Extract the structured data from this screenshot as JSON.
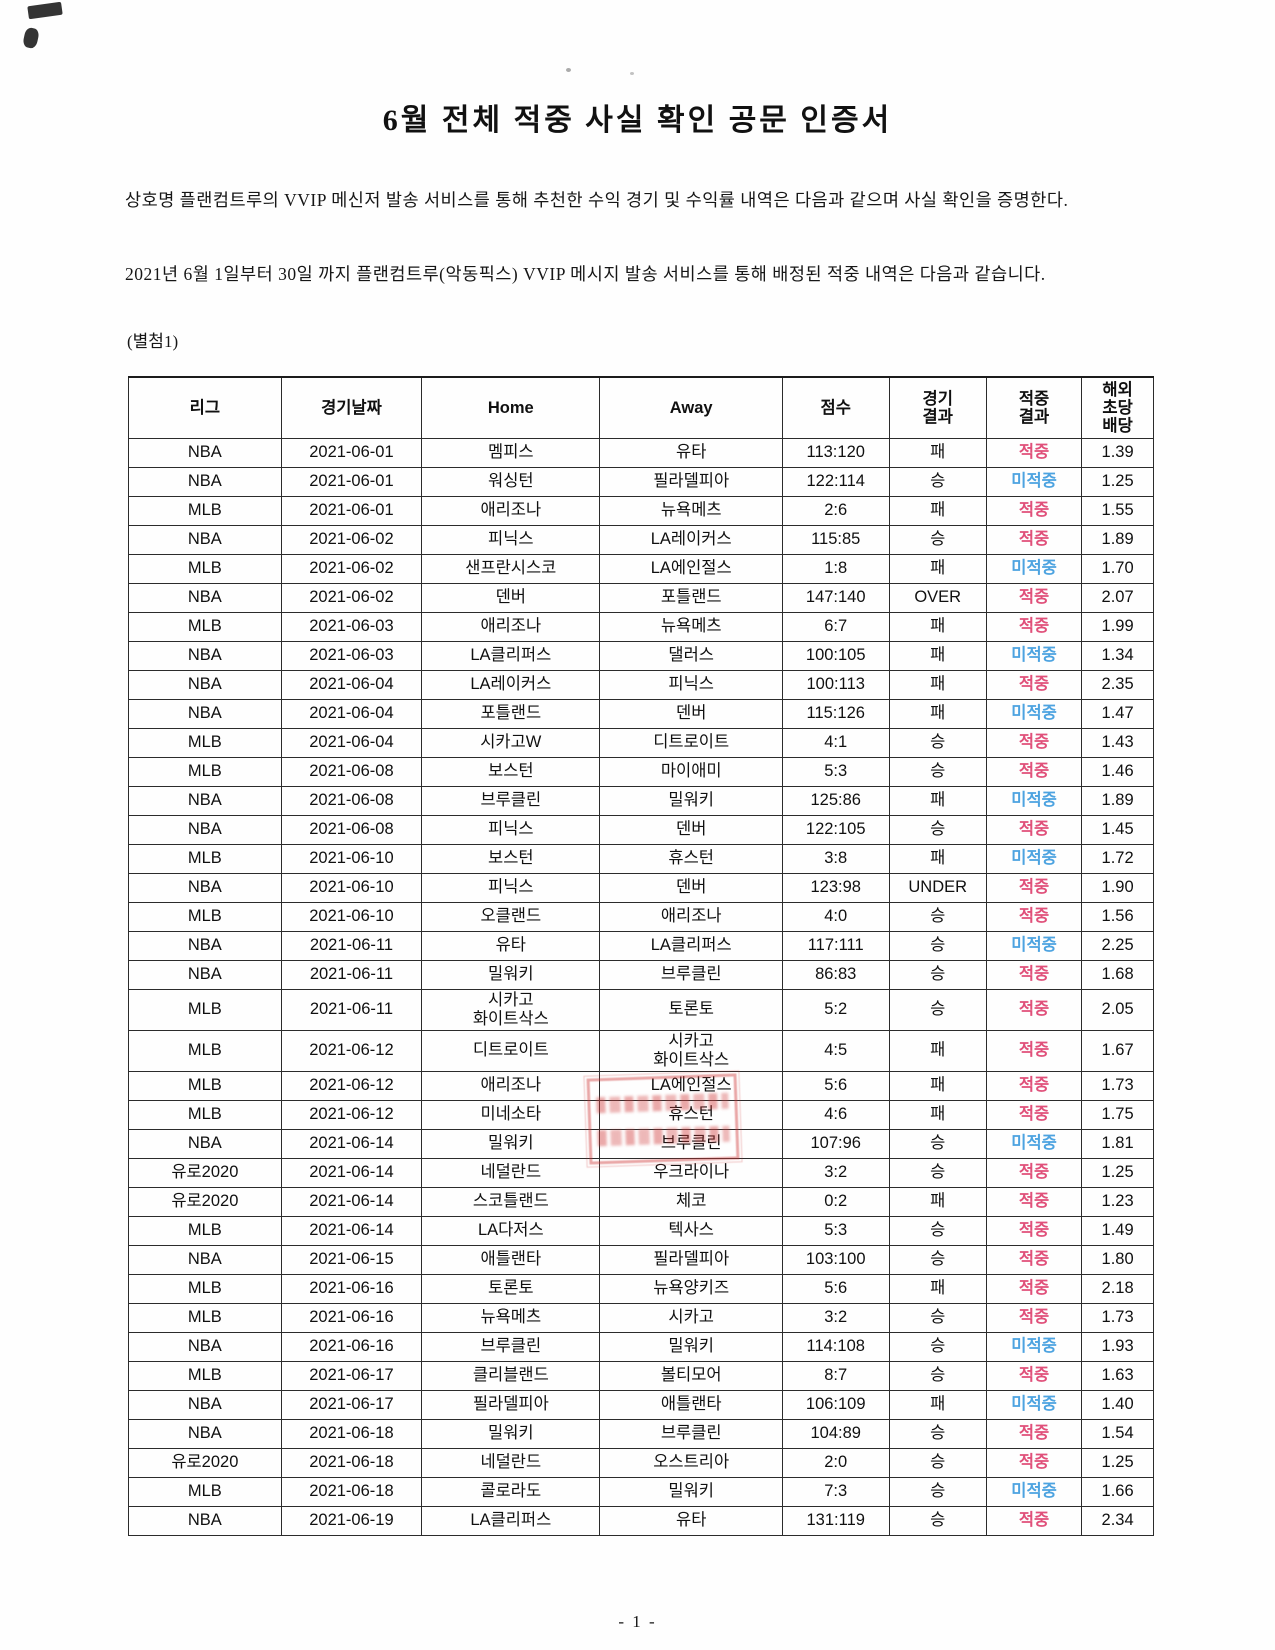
{
  "document": {
    "title": "6월 전체 적중 사실 확인 공문 인증서",
    "paragraph1": "상호명 플랜컴트루의 VVIP 메신저 발송 서비스를 통해 추천한 수익 경기 및 수익률 내역은 다음과 같으며 사실 확인을 증명한다.",
    "paragraph2": "2021년 6월 1일부터 30일 까지 플랜컴트루(악동픽스) VVIP 메시지 발송 서비스를 통해 배정된 적중 내역은 다음과 같습니다.",
    "attachment_label": "(별첨1)",
    "page_number": "- 1 -"
  },
  "colors": {
    "hit": "#e0507a",
    "miss": "#4da3e0"
  },
  "icons": {
    "red_stamp": "red-seal-stamp-illegible"
  },
  "table": {
    "hit_label": "적중",
    "miss_label": "미적중",
    "headers": [
      "리그",
      "경기날짜",
      "Home",
      "Away",
      "점수",
      "경기\n결과",
      "적중\n결과",
      "해외\n초당\n배당"
    ],
    "rows": [
      {
        "league": "NBA",
        "date": "2021-06-01",
        "home": "멤피스",
        "away": "유타",
        "score": "113:120",
        "result": "패",
        "hit": "적중",
        "odds": "1.39"
      },
      {
        "league": "NBA",
        "date": "2021-06-01",
        "home": "워싱턴",
        "away": "필라델피아",
        "score": "122:114",
        "result": "승",
        "hit": "미적중",
        "odds": "1.25"
      },
      {
        "league": "MLB",
        "date": "2021-06-01",
        "home": "애리조나",
        "away": "뉴욕메츠",
        "score": "2:6",
        "result": "패",
        "hit": "적중",
        "odds": "1.55"
      },
      {
        "league": "NBA",
        "date": "2021-06-02",
        "home": "피닉스",
        "away": "LA레이커스",
        "score": "115:85",
        "result": "승",
        "hit": "적중",
        "odds": "1.89"
      },
      {
        "league": "MLB",
        "date": "2021-06-02",
        "home": "샌프란시스코",
        "away": "LA에인절스",
        "score": "1:8",
        "result": "패",
        "hit": "미적중",
        "odds": "1.70"
      },
      {
        "league": "NBA",
        "date": "2021-06-02",
        "home": "덴버",
        "away": "포틀랜드",
        "score": "147:140",
        "result": "OVER",
        "hit": "적중",
        "odds": "2.07"
      },
      {
        "league": "MLB",
        "date": "2021-06-03",
        "home": "애리조나",
        "away": "뉴욕메츠",
        "score": "6:7",
        "result": "패",
        "hit": "적중",
        "odds": "1.99"
      },
      {
        "league": "NBA",
        "date": "2021-06-03",
        "home": "LA클리퍼스",
        "away": "댈러스",
        "score": "100:105",
        "result": "패",
        "hit": "미적중",
        "odds": "1.34"
      },
      {
        "league": "NBA",
        "date": "2021-06-04",
        "home": "LA레이커스",
        "away": "피닉스",
        "score": "100:113",
        "result": "패",
        "hit": "적중",
        "odds": "2.35"
      },
      {
        "league": "NBA",
        "date": "2021-06-04",
        "home": "포틀랜드",
        "away": "덴버",
        "score": "115:126",
        "result": "패",
        "hit": "미적중",
        "odds": "1.47"
      },
      {
        "league": "MLB",
        "date": "2021-06-04",
        "home": "시카고W",
        "away": "디트로이트",
        "score": "4:1",
        "result": "승",
        "hit": "적중",
        "odds": "1.43"
      },
      {
        "league": "MLB",
        "date": "2021-06-08",
        "home": "보스턴",
        "away": "마이애미",
        "score": "5:3",
        "result": "승",
        "hit": "적중",
        "odds": "1.46"
      },
      {
        "league": "NBA",
        "date": "2021-06-08",
        "home": "브루클린",
        "away": "밀워키",
        "score": "125:86",
        "result": "패",
        "hit": "미적중",
        "odds": "1.89"
      },
      {
        "league": "NBA",
        "date": "2021-06-08",
        "home": "피닉스",
        "away": "덴버",
        "score": "122:105",
        "result": "승",
        "hit": "적중",
        "odds": "1.45"
      },
      {
        "league": "MLB",
        "date": "2021-06-10",
        "home": "보스턴",
        "away": "휴스턴",
        "score": "3:8",
        "result": "패",
        "hit": "미적중",
        "odds": "1.72"
      },
      {
        "league": "NBA",
        "date": "2021-06-10",
        "home": "피닉스",
        "away": "덴버",
        "score": "123:98",
        "result": "UNDER",
        "hit": "적중",
        "odds": "1.90"
      },
      {
        "league": "MLB",
        "date": "2021-06-10",
        "home": "오클랜드",
        "away": "애리조나",
        "score": "4:0",
        "result": "승",
        "hit": "적중",
        "odds": "1.56"
      },
      {
        "league": "NBA",
        "date": "2021-06-11",
        "home": "유타",
        "away": "LA클리퍼스",
        "score": "117:111",
        "result": "승",
        "hit": "미적중",
        "odds": "2.25"
      },
      {
        "league": "NBA",
        "date": "2021-06-11",
        "home": "밀워키",
        "away": "브루클린",
        "score": "86:83",
        "result": "승",
        "hit": "적중",
        "odds": "1.68"
      },
      {
        "league": "MLB",
        "date": "2021-06-11",
        "home": "시카고\n화이트삭스",
        "away": "토론토",
        "score": "5:2",
        "result": "승",
        "hit": "적중",
        "odds": "2.05"
      },
      {
        "league": "MLB",
        "date": "2021-06-12",
        "home": "디트로이트",
        "away": "시카고\n화이트삭스",
        "score": "4:5",
        "result": "패",
        "hit": "적중",
        "odds": "1.67"
      },
      {
        "league": "MLB",
        "date": "2021-06-12",
        "home": "애리조나",
        "away": "LA에인절스",
        "score": "5:6",
        "result": "패",
        "hit": "적중",
        "odds": "1.73"
      },
      {
        "league": "MLB",
        "date": "2021-06-12",
        "home": "미네소타",
        "away": "휴스턴",
        "score": "4:6",
        "result": "패",
        "hit": "적중",
        "odds": "1.75"
      },
      {
        "league": "NBA",
        "date": "2021-06-14",
        "home": "밀워키",
        "away": "브루클린",
        "score": "107:96",
        "result": "승",
        "hit": "미적중",
        "odds": "1.81"
      },
      {
        "league": "유로2020",
        "date": "2021-06-14",
        "home": "네덜란드",
        "away": "우크라이나",
        "score": "3:2",
        "result": "승",
        "hit": "적중",
        "odds": "1.25"
      },
      {
        "league": "유로2020",
        "date": "2021-06-14",
        "home": "스코틀랜드",
        "away": "체코",
        "score": "0:2",
        "result": "패",
        "hit": "적중",
        "odds": "1.23"
      },
      {
        "league": "MLB",
        "date": "2021-06-14",
        "home": "LA다저스",
        "away": "텍사스",
        "score": "5:3",
        "result": "승",
        "hit": "적중",
        "odds": "1.49"
      },
      {
        "league": "NBA",
        "date": "2021-06-15",
        "home": "애틀랜타",
        "away": "필라델피아",
        "score": "103:100",
        "result": "승",
        "hit": "적중",
        "odds": "1.80"
      },
      {
        "league": "MLB",
        "date": "2021-06-16",
        "home": "토론토",
        "away": "뉴욕양키즈",
        "score": "5:6",
        "result": "패",
        "hit": "적중",
        "odds": "2.18"
      },
      {
        "league": "MLB",
        "date": "2021-06-16",
        "home": "뉴욕메츠",
        "away": "시카고",
        "score": "3:2",
        "result": "승",
        "hit": "적중",
        "odds": "1.73"
      },
      {
        "league": "NBA",
        "date": "2021-06-16",
        "home": "브루클린",
        "away": "밀워키",
        "score": "114:108",
        "result": "승",
        "hit": "미적중",
        "odds": "1.93"
      },
      {
        "league": "MLB",
        "date": "2021-06-17",
        "home": "클리블랜드",
        "away": "볼티모어",
        "score": "8:7",
        "result": "승",
        "hit": "적중",
        "odds": "1.63"
      },
      {
        "league": "NBA",
        "date": "2021-06-17",
        "home": "필라델피아",
        "away": "애틀랜타",
        "score": "106:109",
        "result": "패",
        "hit": "미적중",
        "odds": "1.40"
      },
      {
        "league": "NBA",
        "date": "2021-06-18",
        "home": "밀워키",
        "away": "브루클린",
        "score": "104:89",
        "result": "승",
        "hit": "적중",
        "odds": "1.54"
      },
      {
        "league": "유로2020",
        "date": "2021-06-18",
        "home": "네덜란드",
        "away": "오스트리아",
        "score": "2:0",
        "result": "승",
        "hit": "적중",
        "odds": "1.25"
      },
      {
        "league": "MLB",
        "date": "2021-06-18",
        "home": "콜로라도",
        "away": "밀워키",
        "score": "7:3",
        "result": "승",
        "hit": "미적중",
        "odds": "1.66"
      },
      {
        "league": "NBA",
        "date": "2021-06-19",
        "home": "LA클리퍼스",
        "away": "유타",
        "score": "131:119",
        "result": "승",
        "hit": "적중",
        "odds": "2.34"
      }
    ]
  }
}
